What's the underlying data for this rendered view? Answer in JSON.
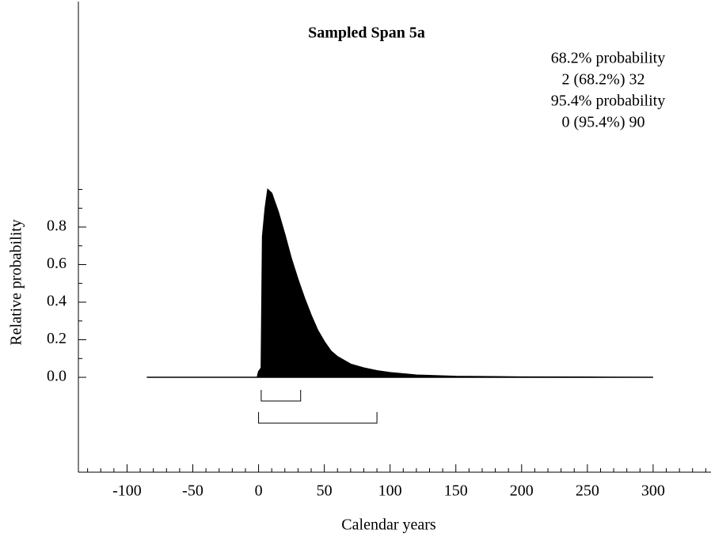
{
  "chart_data": {
    "type": "area",
    "title": "Sampled Span 5a",
    "x_label": "Calendar years",
    "y_label": "Relative probability",
    "x": [
      -85,
      -1,
      0,
      2,
      3,
      5,
      7,
      10,
      15,
      20,
      25,
      30,
      35,
      40,
      45,
      50,
      55,
      60,
      70,
      80,
      90,
      100,
      120,
      150,
      200,
      250,
      300
    ],
    "values": [
      0,
      0,
      0.03,
      0.05,
      0.75,
      0.9,
      1.0,
      0.98,
      0.88,
      0.76,
      0.63,
      0.52,
      0.42,
      0.33,
      0.25,
      0.19,
      0.14,
      0.11,
      0.07,
      0.05,
      0.035,
      0.025,
      0.012,
      0.005,
      0.002,
      0.001,
      0
    ],
    "color": "#000000",
    "xlim": [
      -137,
      344
    ],
    "ylim": [
      -0.505,
      2.0
    ],
    "xticks": [
      -100,
      -50,
      0,
      50,
      100,
      150,
      200,
      250,
      300
    ],
    "xminorticks": [
      -130,
      -120,
      -110,
      -90,
      -80,
      -70,
      -60,
      -40,
      -30,
      -20,
      -10,
      10,
      20,
      30,
      40,
      60,
      70,
      80,
      90,
      110,
      120,
      130,
      140,
      160,
      170,
      180,
      190,
      210,
      220,
      230,
      240,
      260,
      270,
      280,
      290,
      310,
      320,
      330,
      340
    ],
    "yticks": [
      {
        "value": 0,
        "label": "0.0"
      },
      {
        "value": 0.2,
        "label": "0.2"
      },
      {
        "value": 0.4,
        "label": "0.4"
      },
      {
        "value": 0.6,
        "label": "0.6"
      },
      {
        "value": 0.8,
        "label": "0.8"
      }
    ],
    "yminorticks": [
      0.1,
      0.3,
      0.5,
      0.7,
      0.9,
      1.0
    ],
    "ranges": [
      {
        "title": "68.2% probability",
        "label": "2 (68.2%) 32",
        "from": 2,
        "to": 32
      },
      {
        "title": "95.4% probability",
        "label": "0 (95.4%) 90",
        "from": 0,
        "to": 90
      }
    ]
  }
}
